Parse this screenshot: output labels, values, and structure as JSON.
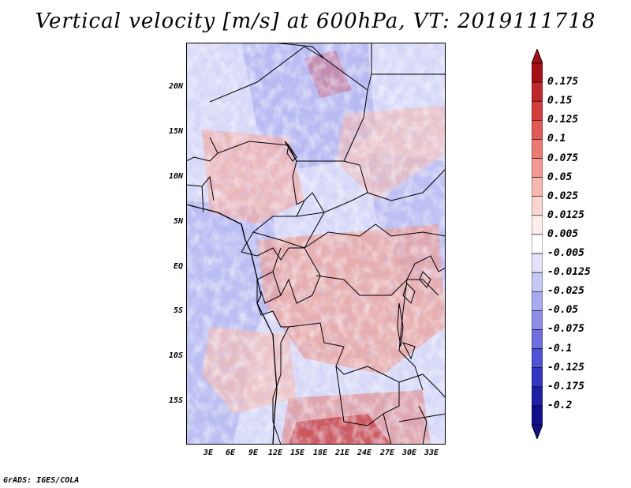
{
  "title": "Vertical velocity [m/s] at 600hPa, VT: 2019111718",
  "footer": "GrADS: IGES/COLA",
  "lat_labels": [
    "20N",
    "15N",
    "10N",
    "5N",
    "EQ",
    "5S",
    "10S",
    "15S"
  ],
  "lon_labels": [
    "3E",
    "6E",
    "9E",
    "12E",
    "15E",
    "18E",
    "21E",
    "24E",
    "27E",
    "30E",
    "33E"
  ],
  "colorbar": {
    "levels": [
      "0.175",
      "0.15",
      "0.125",
      "0.1",
      "0.075",
      "0.05",
      "0.025",
      "0.0125",
      "0.005",
      "-0.005",
      "-0.0125",
      "-0.025",
      "-0.05",
      "-0.075",
      "-0.1",
      "-0.125",
      "-0.175",
      "-0.2"
    ],
    "colors": [
      "#a50f15",
      "#c0272d",
      "#d63a3a",
      "#e35a56",
      "#ec7a73",
      "#f29a92",
      "#f7b8b0",
      "#fbd5cf",
      "#fdeeeb",
      "#ffffff",
      "#e2e3fb",
      "#c6c8f5",
      "#a8aaef",
      "#8b8de8",
      "#6d6fe0",
      "#4f51d6",
      "#3335c4",
      "#1d1fa6",
      "#10108a"
    ],
    "top_color": "#a50f15",
    "bottom_color": "#10108a"
  }
}
